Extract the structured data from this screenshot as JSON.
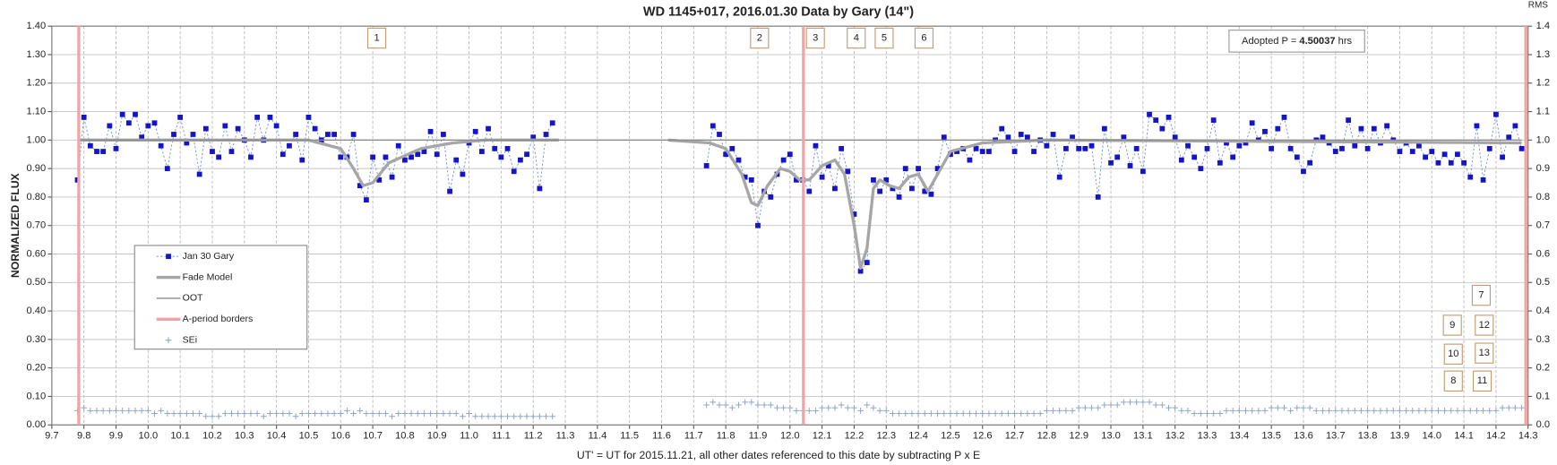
{
  "chart_data": {
    "type": "scatter",
    "title": "WD 1145+017, 2016.01.30 Data by Gary (14\")",
    "xlabel": "UT' = UT for 2015.11.21, all other dates referenced to this date by subtracting P x E",
    "ylabel": "NORMALIZED FLUX",
    "y2label": "RMS",
    "xlim": [
      9.7,
      14.3
    ],
    "xticks": [
      9.7,
      9.8,
      9.9,
      {
        "value": 10,
        "label": "10.0"
      },
      10.1,
      10.2,
      10.3,
      10.4,
      10.5,
      10.6,
      10.7,
      10.8,
      10.9,
      {
        "value": 11,
        "label": "11.0"
      },
      11.1,
      11.2,
      11.3,
      11.4,
      11.5,
      11.6,
      11.7,
      11.8,
      11.9,
      {
        "value": 12,
        "label": "12.0"
      },
      12.1,
      12.2,
      12.3,
      12.4,
      12.5,
      12.6,
      12.7,
      12.8,
      12.9,
      {
        "value": 13,
        "label": "13.0"
      },
      13.1,
      13.2,
      13.3,
      13.4,
      13.5,
      13.6,
      13.7,
      13.8,
      13.9,
      {
        "value": 14,
        "label": "14.0"
      },
      14.1,
      14.2,
      14.3
    ],
    "ylim": [
      0,
      1.4
    ],
    "yticks": [
      {
        "value": 0,
        "label": "0.00"
      },
      {
        "value": 0.1,
        "label": "0.10"
      },
      {
        "value": 0.2,
        "label": "0.20"
      },
      {
        "value": 0.3,
        "label": "0.30"
      },
      {
        "value": 0.4,
        "label": "0.40"
      },
      {
        "value": 0.5,
        "label": "0.50"
      },
      {
        "value": 0.6,
        "label": "0.60"
      },
      {
        "value": 0.7,
        "label": "0.70"
      },
      {
        "value": 0.8,
        "label": "0.80"
      },
      {
        "value": 0.9,
        "label": "0.90"
      },
      {
        "value": 1,
        "label": "1.00"
      },
      {
        "value": 1.1,
        "label": "1.10"
      },
      {
        "value": 1.2,
        "label": "1.20"
      },
      {
        "value": 1.3,
        "label": "1.30"
      },
      {
        "value": 1.4,
        "label": "1.40"
      }
    ],
    "y2lim": [
      0,
      1.4
    ],
    "y2ticks": [
      {
        "value": 0,
        "label": "0.0"
      },
      0.1,
      0.2,
      0.3,
      0.4,
      0.5,
      0.6,
      0.7,
      0.8,
      0.9,
      {
        "value": 1,
        "label": "1.0"
      },
      1.1,
      1.2,
      1.3,
      1.4
    ],
    "grid": true,
    "legend": "left",
    "x": [
      9.78,
      9.8,
      9.82,
      9.84,
      9.86,
      9.88,
      9.9,
      9.92,
      9.94,
      9.96,
      9.98,
      10,
      10.02,
      10.04,
      10.06,
      10.08,
      10.1,
      10.12,
      10.14,
      10.16,
      10.18,
      10.2,
      10.22,
      10.24,
      10.26,
      10.28,
      10.3,
      10.32,
      10.34,
      10.36,
      10.38,
      10.4,
      10.42,
      10.44,
      10.46,
      10.48,
      10.5,
      10.52,
      10.54,
      10.56,
      10.58,
      10.6,
      10.62,
      10.64,
      10.66,
      10.68,
      10.7,
      10.72,
      10.74,
      10.76,
      10.78,
      10.8,
      10.82,
      10.84,
      10.86,
      10.88,
      10.9,
      10.92,
      10.94,
      10.96,
      10.98,
      11,
      11.02,
      11.04,
      11.06,
      11.08,
      11.1,
      11.12,
      11.14,
      11.16,
      11.18,
      11.2,
      11.22,
      11.24,
      11.26,
      11.28,
      11.3,
      11.32,
      11.34,
      11.36,
      11.38,
      11.4,
      11.42,
      11.44,
      11.46,
      11.48,
      11.5,
      11.52,
      11.54,
      11.56,
      11.58,
      11.6,
      11.62,
      11.64,
      11.66,
      11.68,
      11.7,
      11.72,
      11.74,
      11.76,
      11.78,
      11.8,
      11.82,
      11.84,
      11.86,
      11.88,
      11.9,
      11.92,
      11.94,
      11.96,
      11.98,
      12,
      12.02,
      12.04,
      12.06,
      12.08,
      12.1,
      12.12,
      12.14,
      12.16,
      12.18,
      12.2,
      12.22,
      12.24,
      12.26,
      12.28,
      12.3,
      12.32,
      12.34,
      12.36,
      12.38,
      12.4,
      12.42,
      12.44,
      12.46,
      12.48,
      12.5,
      12.52,
      12.54,
      12.56,
      12.58,
      12.6,
      12.62,
      12.64,
      12.66,
      12.68,
      12.7,
      12.72,
      12.74,
      12.76,
      12.78,
      12.8,
      12.82,
      12.84,
      12.86,
      12.88,
      12.9,
      12.92,
      12.94,
      12.96,
      12.98,
      13,
      13.02,
      13.04,
      13.06,
      13.08,
      13.1,
      13.12,
      13.14,
      13.16,
      13.18,
      13.2,
      13.22,
      13.24,
      13.26,
      13.28,
      13.3,
      13.32,
      13.34,
      13.36,
      13.38,
      13.4,
      13.42,
      13.44,
      13.46,
      13.48,
      13.5,
      13.52,
      13.54,
      13.56,
      13.58,
      13.6,
      13.62,
      13.64,
      13.66,
      13.68,
      13.7,
      13.72,
      13.74,
      13.76,
      13.78,
      13.8,
      13.82,
      13.84,
      13.86,
      13.88,
      13.9,
      13.92,
      13.94,
      13.96,
      13.98,
      14,
      14.02,
      14.04,
      14.06,
      14.08,
      14.1,
      14.12,
      14.14,
      14.16,
      14.18,
      14.2,
      14.22,
      14.24,
      14.26,
      14.28
    ],
    "series": [
      {
        "name": "Jan 30 Gary",
        "color": "#1414c8",
        "marker": "square",
        "line": "dashed",
        "values": [
          0.86,
          1.08,
          0.98,
          0.96,
          0.96,
          1.05,
          0.97,
          1.09,
          1.06,
          1.09,
          1.01,
          1.05,
          1.06,
          0.98,
          0.9,
          1.02,
          1.08,
          0.99,
          1.02,
          0.88,
          1.04,
          0.96,
          0.94,
          1.05,
          0.96,
          1.04,
          1,
          0.94,
          1.08,
          1,
          1.08,
          1.05,
          0.95,
          0.98,
          1.02,
          0.93,
          1.08,
          1.04,
          1,
          1.02,
          1.02,
          0.94,
          0.94,
          1.02,
          0.84,
          0.79,
          0.94,
          0.86,
          0.94,
          0.87,
          0.98,
          0.93,
          0.94,
          0.95,
          0.96,
          1.03,
          0.95,
          1.02,
          0.82,
          0.93,
          0.88,
          0.99,
          1.03,
          0.96,
          1.04,
          0.97,
          0.94,
          0.97,
          0.89,
          0.93,
          0.95,
          1.01,
          0.83,
          1.02,
          1.06,
          null,
          null,
          null,
          null,
          null,
          null,
          null,
          null,
          null,
          null,
          null,
          null,
          null,
          null,
          null,
          null,
          null,
          null,
          null,
          null,
          null,
          null,
          null,
          0.91,
          1.05,
          1.02,
          0.95,
          0.97,
          0.93,
          0.87,
          0.86,
          0.7,
          0.82,
          0.8,
          0.88,
          0.93,
          0.95,
          0.86,
          0.86,
          0.82,
          0.98,
          0.87,
          0.91,
          0.83,
          0.97,
          0.89,
          0.74,
          0.54,
          0.57,
          0.86,
          0.82,
          0.86,
          0.83,
          0.8,
          0.9,
          0.83,
          0.9,
          0.82,
          0.81,
          0.9,
          1.01,
          0.95,
          0.96,
          0.97,
          0.93,
          0.97,
          0.96,
          0.96,
          1,
          1.04,
          1.01,
          0.96,
          1.02,
          1.01,
          0.96,
          1,
          0.98,
          1.02,
          0.87,
          0.97,
          1.01,
          0.97,
          0.97,
          0.98,
          0.8,
          1.04,
          0.92,
          0.94,
          1.01,
          0.91,
          0.97,
          0.89,
          1.09,
          1.07,
          1.04,
          1.08,
          1.01,
          0.93,
          0.98,
          0.94,
          0.9,
          0.97,
          1.07,
          0.92,
          0.99,
          0.94,
          0.98,
          0.99,
          1.06,
          1,
          1.03,
          0.97,
          1.04,
          1.08,
          0.97,
          0.94,
          0.89,
          0.92,
          1,
          1.01,
          0.99,
          0.96,
          0.97,
          1.07,
          0.98,
          1.04,
          0.97,
          1.04,
          0.99,
          1.05,
          1,
          0.96,
          0.99,
          0.96,
          0.98,
          0.94,
          0.96,
          0.92,
          0.95,
          0.92,
          0.95,
          0.92,
          0.87,
          1.05,
          0.86,
          0.97,
          1.09,
          0.94,
          1.01,
          1.05,
          0.97
        ]
      },
      {
        "name": "Fade Model",
        "color": "#a6a6a6",
        "line": "thick",
        "x": [
          9.78,
          10.5,
          10.6,
          10.64,
          10.67,
          10.7,
          10.75,
          10.85,
          10.95,
          11.05,
          11.28,
          11.45,
          11.62,
          11.75,
          11.8,
          11.85,
          11.88,
          11.9,
          11.93,
          11.97,
          12.0,
          12.03,
          12.06,
          12.1,
          12.14,
          12.17,
          12.2,
          12.22,
          12.24,
          12.26,
          12.28,
          12.31,
          12.34,
          12.37,
          12.4,
          12.43,
          12.46,
          12.5,
          12.6,
          12.8,
          14.28
        ],
        "values": [
          1,
          1,
          0.97,
          0.9,
          0.84,
          0.85,
          0.92,
          0.97,
          0.99,
          1,
          1,
          null,
          1,
          0.99,
          0.97,
          0.88,
          0.78,
          0.77,
          0.84,
          0.9,
          0.89,
          0.86,
          0.86,
          0.91,
          0.93,
          0.88,
          0.7,
          0.55,
          0.62,
          0.83,
          0.86,
          0.84,
          0.83,
          0.87,
          0.88,
          0.82,
          0.88,
          0.96,
          0.99,
          1,
          0.99
        ]
      },
      {
        "name": "OOT",
        "color": "#8c8c8c",
        "line": "solid",
        "x": [
          9.78,
          14.28
        ],
        "values": [
          1,
          1
        ]
      },
      {
        "name": "A-period borders",
        "color": "#f2a4a4",
        "line": "vertical",
        "x": [
          9.784,
          12.042,
          14.293
        ]
      },
      {
        "name": "SEi",
        "color": "#8ea6c6",
        "marker": "plus",
        "axis": "y2",
        "values": [
          0.05,
          0.06,
          0.05,
          0.05,
          0.05,
          0.05,
          0.05,
          0.05,
          0.05,
          0.05,
          0.05,
          0.05,
          0.04,
          0.05,
          0.04,
          0.04,
          0.04,
          0.04,
          0.04,
          0.04,
          0.03,
          0.03,
          0.03,
          0.04,
          0.04,
          0.04,
          0.04,
          0.04,
          0.04,
          0.03,
          0.04,
          0.04,
          0.04,
          0.04,
          0.03,
          0.04,
          0.04,
          0.04,
          0.04,
          0.04,
          0.04,
          0.04,
          0.05,
          0.04,
          0.05,
          0.04,
          0.04,
          0.04,
          0.04,
          0.03,
          0.04,
          0.04,
          0.04,
          0.04,
          0.04,
          0.04,
          0.04,
          0.04,
          0.04,
          0.04,
          0.03,
          0.04,
          0.03,
          0.03,
          0.03,
          0.03,
          0.03,
          0.03,
          0.03,
          0.03,
          0.03,
          0.03,
          0.03,
          0.03,
          0.03,
          null,
          null,
          null,
          null,
          null,
          null,
          null,
          null,
          null,
          null,
          null,
          null,
          null,
          null,
          null,
          null,
          null,
          null,
          null,
          null,
          null,
          null,
          null,
          0.07,
          0.08,
          0.07,
          0.07,
          0.06,
          0.07,
          0.08,
          0.08,
          0.07,
          0.07,
          0.07,
          0.06,
          0.06,
          0.06,
          0.05,
          0.05,
          0.05,
          0.05,
          0.06,
          0.06,
          0.06,
          0.07,
          0.06,
          0.06,
          0.05,
          0.07,
          0.06,
          0.05,
          0.05,
          0.04,
          0.04,
          0.04,
          0.04,
          0.04,
          0.04,
          0.04,
          0.04,
          0.04,
          0.04,
          0.04,
          0.04,
          0.04,
          0.04,
          0.04,
          0.04,
          0.04,
          0.04,
          0.04,
          0.04,
          0.04,
          0.04,
          0.04,
          0.04,
          0.05,
          0.05,
          0.05,
          0.05,
          0.05,
          0.06,
          0.06,
          0.06,
          0.06,
          0.07,
          0.07,
          0.07,
          0.08,
          0.08,
          0.08,
          0.08,
          0.08,
          0.07,
          0.07,
          0.06,
          0.06,
          0.05,
          0.05,
          0.04,
          0.04,
          0.04,
          0.04,
          0.04,
          0.05,
          0.05,
          0.05,
          0.05,
          0.05,
          0.05,
          0.05,
          0.06,
          0.06,
          0.06,
          0.05,
          0.06,
          0.06,
          0.06,
          0.05,
          0.05,
          0.05,
          0.05,
          0.05,
          0.05,
          0.05,
          0.05,
          0.05,
          0.05,
          0.05,
          0.05,
          0.05,
          0.05,
          0.05,
          0.05,
          0.05,
          0.05,
          0.05,
          0.05,
          0.05,
          0.05,
          0.05,
          0.05,
          0.05,
          0.05,
          0.05,
          0.05,
          0.05,
          0.06,
          0.06,
          0.06,
          0.06
        ]
      }
    ],
    "annotations": [
      "1",
      "2",
      "3",
      "4",
      "5",
      "6",
      "7",
      "8",
      "9",
      "10",
      "11",
      "12",
      "13"
    ],
    "adopted_period": {
      "label": "Adopted P =",
      "value": 4.50037,
      "unit": "hrs"
    }
  }
}
